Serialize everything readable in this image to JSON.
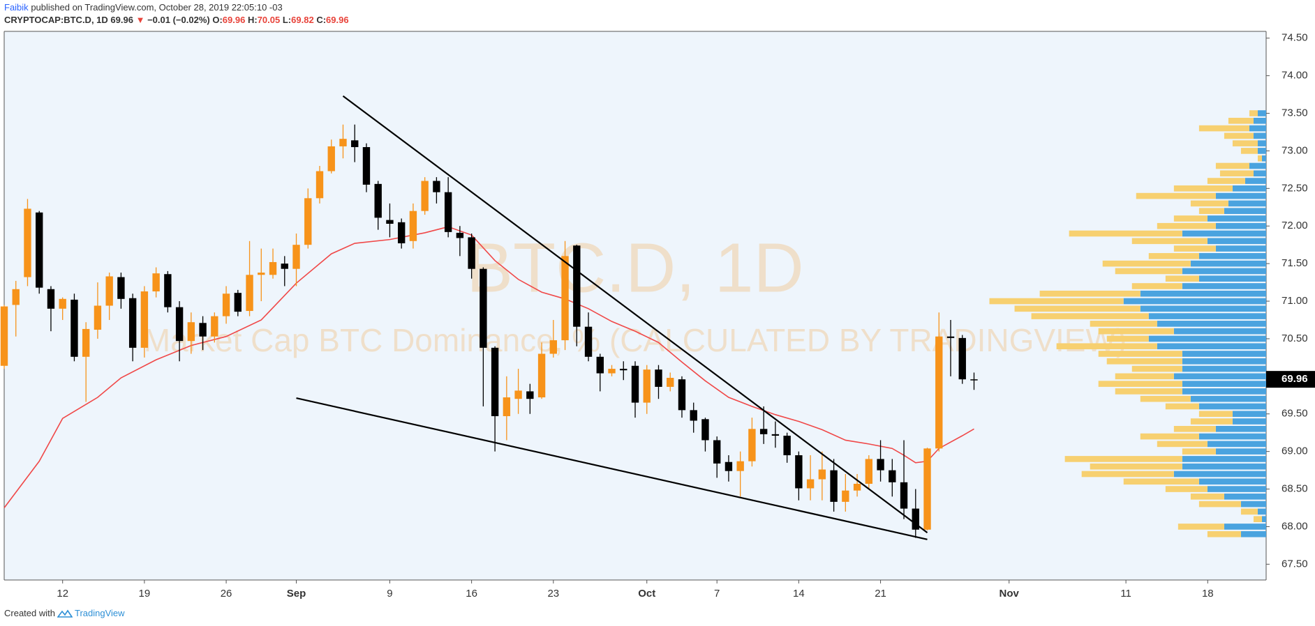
{
  "header": {
    "author": "Faibik",
    "published": "published on TradingView.com, October 28, 2019 22:05:10 -03",
    "symbol": "CRYPTOCAP:BTC.D, 1D",
    "change_arrow": "▼",
    "change": "−0.01 (−0.02%)",
    "o_label": "O:",
    "h_label": "H:",
    "l_label": "L:",
    "c_label": "C:"
  },
  "footer": {
    "text": "Created with",
    "brand": "TradingView"
  },
  "chart_data": {
    "type": "candlestick",
    "watermark_title": "BTC.D, 1D",
    "watermark_subtitle": "Market Cap BTC Dominance, % (CALCULATED BY TRADINGVIEW)",
    "up_color": "#f7931a",
    "down_color": "#000000",
    "x": [
      "Aug 7",
      "Aug 8",
      "Aug 9",
      "Aug 10",
      "Aug 11",
      "Aug 12",
      "Aug 13",
      "Aug 14",
      "Aug 15",
      "Aug 16",
      "Aug 17",
      "Aug 18",
      "Aug 19",
      "Aug 20",
      "Aug 21",
      "Aug 22",
      "Aug 23",
      "Aug 24",
      "Aug 25",
      "Aug 26",
      "Aug 27",
      "Aug 28",
      "Aug 29",
      "Aug 30",
      "Aug 31",
      "Sep 1",
      "Sep 2",
      "Sep 3",
      "Sep 4",
      "Sep 5",
      "Sep 6",
      "Sep 7",
      "Sep 8",
      "Sep 9",
      "Sep 10",
      "Sep 11",
      "Sep 12",
      "Sep 13",
      "Sep 14",
      "Sep 15",
      "Sep 16",
      "Sep 17",
      "Sep 18",
      "Sep 19",
      "Sep 20",
      "Sep 21",
      "Sep 22",
      "Sep 23",
      "Sep 24",
      "Sep 25",
      "Sep 26",
      "Sep 27",
      "Sep 28",
      "Sep 29",
      "Sep 30",
      "Oct 1",
      "Oct 2",
      "Oct 3",
      "Oct 4",
      "Oct 5",
      "Oct 6",
      "Oct 7",
      "Oct 8",
      "Oct 9",
      "Oct 10",
      "Oct 11",
      "Oct 12",
      "Oct 13",
      "Oct 14",
      "Oct 15",
      "Oct 16",
      "Oct 17",
      "Oct 18",
      "Oct 19",
      "Oct 20",
      "Oct 21",
      "Oct 22",
      "Oct 23",
      "Oct 24",
      "Oct 25",
      "Oct 26",
      "Oct 27",
      "Oct 28",
      "Oct 29"
    ],
    "open": [
      70.14,
      70.95,
      71.32,
      72.18,
      71.16,
      70.9,
      71.02,
      70.26,
      70.62,
      70.94,
      71.32,
      71.04,
      70.38,
      71.13,
      71.36,
      70.92,
      70.47,
      70.71,
      70.53,
      70.8,
      71.11,
      70.87,
      71.35,
      71.35,
      71.5,
      71.43,
      71.75,
      72.37,
      72.73,
      73.06,
      73.14,
      73.05,
      72.56,
      72.08,
      72.05,
      71.8,
      72.2,
      72.6,
      72.45,
      71.91,
      71.85,
      71.43,
      70.38,
      69.47,
      69.7,
      69.8,
      69.72,
      70.3,
      70.48,
      71.74,
      70.66,
      70.26,
      70.04,
      70.1,
      70.14,
      69.65,
      70.09,
      69.86,
      69.96,
      69.55,
      69.43,
      69.15,
      68.86,
      68.74,
      68.87,
      69.3,
      69.23,
      69.21,
      68.95,
      68.51,
      68.63,
      68.75,
      68.33,
      68.48,
      68.57,
      68.9,
      68.75,
      68.59,
      68.24,
      67.96,
      69.04,
      70.53,
      70.51,
      69.96
    ],
    "high": [
      70.95,
      71.27,
      72.36,
      72.2,
      71.2,
      71.05,
      71.1,
      70.72,
      71.25,
      71.38,
      71.38,
      71.1,
      71.2,
      71.45,
      71.4,
      71.0,
      70.85,
      70.8,
      70.85,
      71.2,
      71.15,
      71.8,
      71.7,
      71.7,
      71.6,
      71.9,
      72.5,
      72.8,
      73.15,
      73.35,
      73.35,
      73.1,
      72.6,
      72.3,
      72.1,
      72.3,
      72.65,
      72.65,
      72.65,
      72.0,
      71.9,
      71.45,
      70.4,
      70.0,
      70.1,
      69.9,
      70.45,
      70.75,
      71.8,
      71.75,
      70.85,
      70.3,
      70.15,
      70.2,
      70.2,
      70.15,
      70.15,
      70.05,
      70.0,
      69.65,
      69.45,
      69.2,
      68.95,
      69.0,
      69.45,
      69.6,
      69.4,
      69.25,
      69.0,
      68.95,
      69.0,
      68.9,
      68.7,
      68.7,
      68.95,
      69.15,
      68.9,
      69.15,
      68.5,
      69.05,
      70.85,
      70.75,
      70.55,
      70.05
    ],
    "low": [
      70.1,
      70.53,
      71.2,
      71.1,
      70.6,
      70.75,
      70.2,
      69.66,
      70.5,
      70.75,
      70.9,
      70.2,
      70.25,
      71.05,
      70.85,
      70.2,
      70.3,
      70.35,
      70.45,
      70.7,
      70.8,
      70.8,
      71.0,
      71.3,
      71.2,
      71.2,
      71.7,
      72.3,
      72.7,
      72.9,
      72.85,
      72.45,
      71.95,
      71.85,
      71.7,
      71.7,
      72.15,
      72.3,
      71.85,
      71.6,
      71.3,
      69.6,
      69.0,
      69.15,
      69.5,
      69.5,
      69.7,
      70.25,
      70.35,
      70.4,
      70.2,
      69.8,
      70.0,
      69.95,
      69.45,
      69.5,
      69.7,
      69.8,
      69.45,
      69.25,
      69.0,
      68.65,
      68.6,
      68.4,
      68.8,
      69.1,
      69.05,
      68.85,
      68.35,
      68.35,
      68.35,
      68.2,
      68.2,
      68.4,
      68.5,
      68.6,
      68.4,
      68.1,
      67.85,
      67.95,
      69.0,
      70.0,
      69.9,
      69.82
    ],
    "close": [
      70.93,
      71.16,
      72.23,
      71.18,
      70.9,
      71.03,
      70.26,
      70.63,
      70.94,
      71.33,
      71.03,
      70.38,
      71.13,
      71.37,
      70.92,
      70.47,
      70.72,
      70.53,
      70.8,
      71.1,
      70.86,
      71.35,
      71.38,
      71.52,
      71.43,
      71.75,
      72.37,
      72.73,
      73.06,
      73.16,
      73.05,
      72.55,
      72.11,
      72.03,
      71.77,
      72.2,
      72.6,
      72.45,
      71.92,
      71.84,
      71.43,
      70.38,
      69.47,
      69.72,
      69.81,
      69.7,
      70.3,
      70.48,
      71.6,
      70.66,
      70.26,
      70.04,
      70.1,
      70.08,
      69.65,
      70.09,
      69.86,
      69.98,
      69.55,
      69.41,
      69.15,
      68.84,
      68.74,
      68.87,
      69.3,
      69.23,
      69.21,
      68.95,
      68.51,
      68.63,
      68.76,
      68.33,
      68.48,
      68.57,
      68.9,
      68.75,
      68.59,
      68.24,
      67.96,
      69.04,
      70.53,
      70.51,
      69.96,
      69.96
    ],
    "ma": {
      "color": "#f04848",
      "x": [
        "Aug 7",
        "Aug 10",
        "Aug 12",
        "Aug 15",
        "Aug 17",
        "Aug 20",
        "Aug 23",
        "Aug 26",
        "Aug 29",
        "Sep 1",
        "Sep 4",
        "Sep 6",
        "Sep 9",
        "Sep 12",
        "Sep 14",
        "Sep 16",
        "Sep 18",
        "Sep 20",
        "Sep 22",
        "Sep 24",
        "Sep 26",
        "Sep 28",
        "Sep 30",
        "Oct 2",
        "Oct 4",
        "Oct 6",
        "Oct 8",
        "Oct 10",
        "Oct 12",
        "Oct 14",
        "Oct 16",
        "Oct 18",
        "Oct 20",
        "Oct 22",
        "Oct 23",
        "Oct 24",
        "Oct 25",
        "Oct 26",
        "Oct 28",
        "Oct 29"
      ],
      "values": [
        68.25,
        68.87,
        69.44,
        69.72,
        69.98,
        70.22,
        70.41,
        70.53,
        70.75,
        71.24,
        71.63,
        71.77,
        71.82,
        71.91,
        71.99,
        71.88,
        71.54,
        71.29,
        71.12,
        71.03,
        70.9,
        70.73,
        70.6,
        70.45,
        70.19,
        69.94,
        69.72,
        69.6,
        69.49,
        69.4,
        69.29,
        69.15,
        69.1,
        69.04,
        68.95,
        68.85,
        68.87,
        69.04,
        69.21,
        69.3
      ]
    },
    "trendlines": [
      {
        "color": "#000000",
        "x": [
          "Sep 5",
          "Oct 25"
        ],
        "values": [
          73.73,
          67.92
        ]
      },
      {
        "color": "#000000",
        "x": [
          "Sep 1",
          "Oct 25"
        ],
        "values": [
          69.71,
          67.83
        ]
      }
    ],
    "volume_profile": {
      "up_color": "#f7d070",
      "down_color": "#4aa3df",
      "price": [
        73.5,
        73.4,
        73.3,
        73.2,
        73.1,
        73.0,
        72.9,
        72.8,
        72.7,
        72.6,
        72.5,
        72.4,
        72.3,
        72.2,
        72.1,
        72.0,
        71.9,
        71.8,
        71.7,
        71.6,
        71.5,
        71.4,
        71.3,
        71.2,
        71.1,
        71.0,
        70.9,
        70.8,
        70.7,
        70.6,
        70.5,
        70.4,
        70.3,
        70.2,
        70.1,
        70.0,
        69.9,
        69.8,
        69.7,
        69.6,
        69.5,
        69.4,
        69.3,
        69.2,
        69.1,
        69.0,
        68.9,
        68.8,
        68.7,
        68.6,
        68.5,
        68.4,
        68.3,
        68.2,
        68.1,
        68.0,
        67.9
      ],
      "up": [
        10,
        30,
        60,
        35,
        30,
        20,
        5,
        40,
        40,
        45,
        70,
        95,
        45,
        30,
        40,
        70,
        135,
        90,
        50,
        60,
        105,
        80,
        40,
        60,
        120,
        160,
        150,
        140,
        80,
        90,
        50,
        120,
        100,
        90,
        60,
        70,
        100,
        80,
        60,
        40,
        40,
        50,
        50,
        70,
        60,
        40,
        140,
        110,
        110,
        90,
        50,
        40,
        50,
        20,
        10,
        55,
        40
      ],
      "down": [
        10,
        15,
        20,
        15,
        10,
        10,
        5,
        20,
        15,
        25,
        40,
        60,
        45,
        50,
        70,
        60,
        100,
        70,
        60,
        80,
        90,
        100,
        80,
        100,
        150,
        170,
        150,
        140,
        130,
        110,
        140,
        130,
        100,
        100,
        100,
        110,
        100,
        100,
        90,
        80,
        40,
        40,
        60,
        80,
        70,
        60,
        100,
        100,
        110,
        80,
        70,
        50,
        30,
        10,
        5,
        50,
        30
      ]
    },
    "xlim": [
      "Aug 7",
      "Nov 23"
    ],
    "xticks": [
      {
        "value": "Aug 12",
        "label": "12"
      },
      {
        "value": "Aug 19",
        "label": "19"
      },
      {
        "value": "Aug 26",
        "label": "26"
      },
      {
        "value": "Sep 1",
        "label": "Sep"
      },
      {
        "value": "Sep 9",
        "label": "9"
      },
      {
        "value": "Sep 16",
        "label": "16"
      },
      {
        "value": "Sep 23",
        "label": "23"
      },
      {
        "value": "Oct 1",
        "label": "Oct"
      },
      {
        "value": "Oct 7",
        "label": "7"
      },
      {
        "value": "Oct 14",
        "label": "14"
      },
      {
        "value": "Oct 21",
        "label": "21"
      },
      {
        "value": "Nov 1",
        "label": "Nov"
      },
      {
        "value": "Nov 11",
        "label": "11"
      },
      {
        "value": "Nov 18",
        "label": "18"
      }
    ],
    "ylim": [
      67.29,
      74.59
    ],
    "yticks": [
      {
        "value": 67.5,
        "label": "67.50"
      },
      {
        "value": 68,
        "label": "68.00"
      },
      {
        "value": 68.5,
        "label": "68.50"
      },
      {
        "value": 69,
        "label": "69.00"
      },
      {
        "value": 69.5,
        "label": "69.50"
      },
      {
        "value": 70,
        "label": "70.00"
      },
      {
        "value": 70.5,
        "label": "70.50"
      },
      {
        "value": 71,
        "label": "71.00"
      },
      {
        "value": 71.5,
        "label": "71.50"
      },
      {
        "value": 72,
        "label": "72.00"
      },
      {
        "value": 72.5,
        "label": "72.50"
      },
      {
        "value": 73,
        "label": "73.00"
      },
      {
        "value": 73.5,
        "label": "73.50"
      },
      {
        "value": 74,
        "label": "74.00"
      },
      {
        "value": 74.5,
        "label": "74.50"
      }
    ],
    "grid": false
  }
}
